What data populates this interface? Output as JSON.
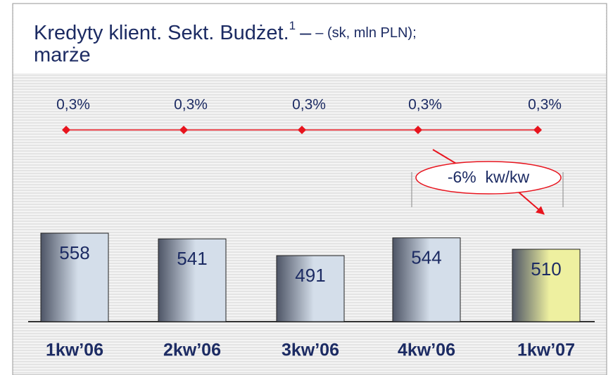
{
  "chart_data": {
    "type": "bar",
    "title": "Kredyty klient. Sekt. Budżet.",
    "title_note": "1",
    "subtitle": "– (sk, mln PLN);",
    "title_line2": "marże",
    "categories": [
      "1kw’06",
      "2kw’06",
      "3kw’06",
      "4kw’06",
      "1kw’07"
    ],
    "values": [
      558,
      541,
      491,
      544,
      510
    ],
    "colors": [
      "#d4deea",
      "#d4deea",
      "#d4deea",
      "#d4deea",
      "#eef0a0"
    ],
    "ylim": [
      294,
      600
    ],
    "line": {
      "type": "line",
      "axis": "y2",
      "values": [
        0.3,
        0.3,
        0.3,
        0.3,
        0.3
      ],
      "value_labels": [
        "0,3%",
        "0,3%",
        "0,3%",
        "0,3%",
        "0,3%"
      ],
      "color": "#e8141e"
    },
    "y2lim": [
      0,
      0.6
    ],
    "annotation": "-6%  kw/kw"
  }
}
